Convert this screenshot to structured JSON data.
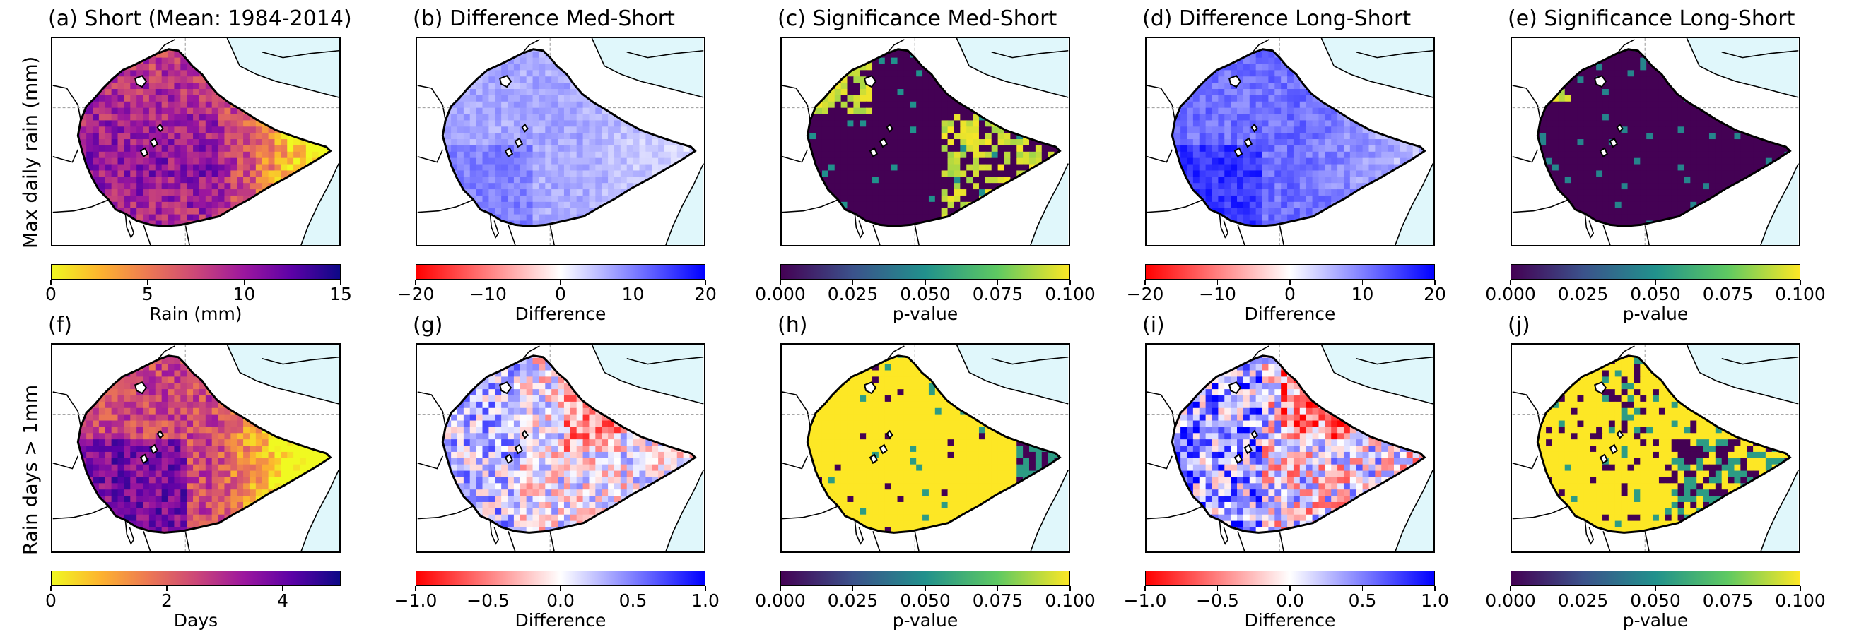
{
  "rows": [
    {
      "label": "Max daily rain (mm)"
    },
    {
      "label": "Rain days > 1mm"
    }
  ],
  "panels": [
    {
      "title": "(a) Short (Mean: 1984-2014)",
      "kind": "plasma",
      "row": 0,
      "col": 0
    },
    {
      "title": "(b) Difference Med-Short",
      "kind": "bwr",
      "row": 0,
      "col": 1
    },
    {
      "title": "(c) Significance Med-Short",
      "kind": "sig1",
      "row": 0,
      "col": 2
    },
    {
      "title": "(d) Difference Long-Short",
      "kind": "bwr2",
      "row": 0,
      "col": 3
    },
    {
      "title": "(e) Significance Long-Short",
      "kind": "sig2",
      "row": 0,
      "col": 4
    },
    {
      "title": "(f)",
      "kind": "plasma2",
      "row": 1,
      "col": 0
    },
    {
      "title": "(g)",
      "kind": "bwrmix",
      "row": 1,
      "col": 1
    },
    {
      "title": "(h)",
      "kind": "sig3",
      "row": 1,
      "col": 2
    },
    {
      "title": "(i)",
      "kind": "bwrmix2",
      "row": 1,
      "col": 3
    },
    {
      "title": "(j)",
      "kind": "sig4",
      "row": 1,
      "col": 4
    }
  ],
  "colorbars": [
    {
      "row": 0,
      "col": 0,
      "cmap": "plasma_r",
      "ticks": [
        "0",
        "5",
        "10",
        "15"
      ],
      "range": [
        0,
        15
      ],
      "values": [
        0,
        5,
        10,
        15
      ],
      "label": "Rain (mm)"
    },
    {
      "row": 0,
      "col": 1,
      "cmap": "bwr_r",
      "ticks": [
        "−20",
        "−10",
        "0",
        "10",
        "20"
      ],
      "range": [
        -20,
        20
      ],
      "values": [
        -20,
        -10,
        0,
        10,
        20
      ],
      "label": "Difference"
    },
    {
      "row": 0,
      "col": 2,
      "cmap": "viridis",
      "ticks": [
        "0.000",
        "0.025",
        "0.050",
        "0.075",
        "0.100"
      ],
      "range": [
        0,
        0.1
      ],
      "values": [
        0,
        0.025,
        0.05,
        0.075,
        0.1
      ],
      "label": "p-value"
    },
    {
      "row": 0,
      "col": 3,
      "cmap": "bwr_r",
      "ticks": [
        "−20",
        "−10",
        "0",
        "10",
        "20"
      ],
      "range": [
        -20,
        20
      ],
      "values": [
        -20,
        -10,
        0,
        10,
        20
      ],
      "label": "Difference"
    },
    {
      "row": 0,
      "col": 4,
      "cmap": "viridis",
      "ticks": [
        "0.000",
        "0.025",
        "0.050",
        "0.075",
        "0.100"
      ],
      "range": [
        0,
        0.1
      ],
      "values": [
        0,
        0.025,
        0.05,
        0.075,
        0.1
      ],
      "label": "p-value"
    },
    {
      "row": 1,
      "col": 0,
      "cmap": "plasma_r",
      "ticks": [
        "0",
        "2",
        "4"
      ],
      "range": [
        0,
        5
      ],
      "values": [
        0,
        2,
        4
      ],
      "label": "Days"
    },
    {
      "row": 1,
      "col": 1,
      "cmap": "bwr_r",
      "ticks": [
        "−1.0",
        "−0.5",
        "0.0",
        "0.5",
        "1.0"
      ],
      "range": [
        -1,
        1
      ],
      "values": [
        -1,
        -0.5,
        0,
        0.5,
        1
      ],
      "label": "Difference"
    },
    {
      "row": 1,
      "col": 2,
      "cmap": "viridis",
      "ticks": [
        "0.000",
        "0.025",
        "0.050",
        "0.075",
        "0.100"
      ],
      "range": [
        0,
        0.1
      ],
      "values": [
        0,
        0.025,
        0.05,
        0.075,
        0.1
      ],
      "label": "p-value"
    },
    {
      "row": 1,
      "col": 3,
      "cmap": "bwr_r",
      "ticks": [
        "−1.0",
        "−0.5",
        "0.0",
        "0.5",
        "1.0"
      ],
      "range": [
        -1,
        1
      ],
      "values": [
        -1,
        -0.5,
        0,
        0.5,
        1
      ],
      "label": "Difference"
    },
    {
      "row": 1,
      "col": 4,
      "cmap": "viridis",
      "ticks": [
        "0.000",
        "0.025",
        "0.050",
        "0.075",
        "0.100"
      ],
      "range": [
        0,
        0.1
      ],
      "values": [
        0,
        0.025,
        0.05,
        0.075,
        0.1
      ],
      "label": "p-value"
    }
  ],
  "colors": {
    "ocean": "#e0f7fb",
    "land": "#ffffff",
    "border": "#000000"
  }
}
